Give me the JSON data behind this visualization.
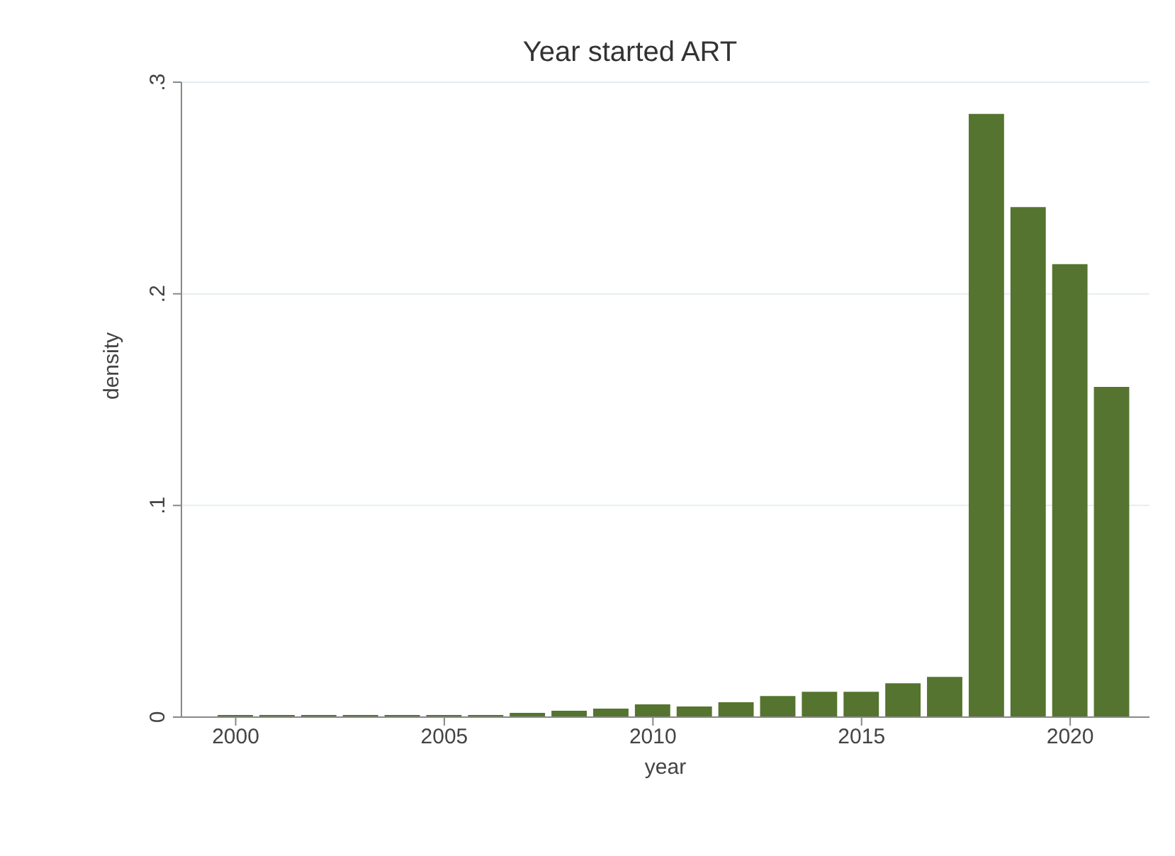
{
  "chart_data": {
    "type": "bar",
    "title": "Year started ART",
    "xlabel": "year",
    "ylabel": "density",
    "x": [
      2000,
      2001,
      2002,
      2003,
      2004,
      2005,
      2006,
      2007,
      2008,
      2009,
      2010,
      2011,
      2012,
      2013,
      2014,
      2015,
      2016,
      2017,
      2018,
      2019,
      2020,
      2021
    ],
    "values": [
      0.001,
      0.001,
      0.001,
      0.001,
      0.001,
      0.001,
      0.001,
      0.002,
      0.003,
      0.004,
      0.006,
      0.005,
      0.007,
      0.01,
      0.012,
      0.012,
      0.016,
      0.019,
      0.285,
      0.241,
      0.214,
      0.156
    ],
    "color": "#55742f",
    "xlim": [
      1998.7,
      2021.9
    ],
    "xticks": [
      2000,
      2005,
      2010,
      2015,
      2020
    ],
    "ylim": [
      0,
      0.3
    ],
    "yticks": [
      0,
      {
        "value": 0.1,
        "label": ".1"
      },
      {
        "value": 0.2,
        "label": ".2"
      },
      {
        "value": 0.3,
        "label": ".3"
      }
    ],
    "grid": "y"
  }
}
